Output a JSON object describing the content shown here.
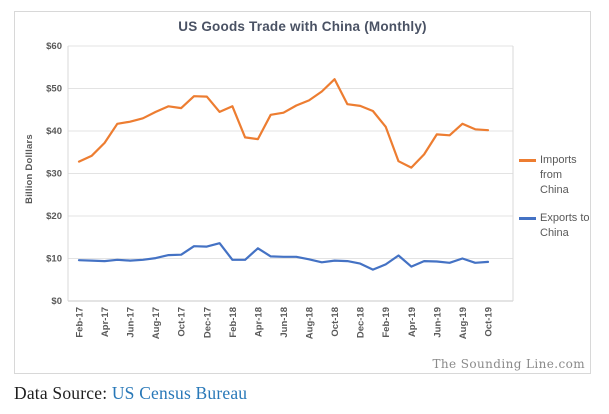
{
  "chart_data": {
    "type": "line",
    "title": "US Goods Trade with China (Monthly)",
    "ylabel": "Billion Dolllars",
    "xlabel": "",
    "ylim": [
      0,
      60
    ],
    "ytick_labels": [
      "$0",
      "$10",
      "$20",
      "$30",
      "$40",
      "$50",
      "$60"
    ],
    "grid": true,
    "legend_position": "right",
    "x": [
      "Feb-17",
      "Mar-17",
      "Apr-17",
      "May-17",
      "Jun-17",
      "Jul-17",
      "Aug-17",
      "Sep-17",
      "Oct-17",
      "Nov-17",
      "Dec-17",
      "Jan-18",
      "Feb-18",
      "Mar-18",
      "Apr-18",
      "May-18",
      "Jun-18",
      "Jul-18",
      "Aug-18",
      "Sep-18",
      "Oct-18",
      "Nov-18",
      "Dec-18",
      "Jan-19",
      "Feb-19",
      "Mar-19",
      "Apr-19",
      "May-19",
      "Jun-19",
      "Jul-19",
      "Aug-19",
      "Sep-19",
      "Oct-19"
    ],
    "xtick_labels": [
      "Feb-17",
      "Apr-17",
      "Jun-17",
      "Aug-17",
      "Oct-17",
      "Dec-17",
      "Feb-18",
      "Apr-18",
      "Jun-18",
      "Aug-18",
      "Oct-18",
      "Dec-18",
      "Feb-19",
      "Apr-19",
      "Jun-19",
      "Aug-19",
      "Oct-19"
    ],
    "series": [
      {
        "name": "Imports from China",
        "color": "#ED7D31",
        "values": [
          32.8,
          34.2,
          37.2,
          41.7,
          42.2,
          43.0,
          44.5,
          45.8,
          45.4,
          48.2,
          48.1,
          44.5,
          45.8,
          38.5,
          38.1,
          43.8,
          44.3,
          46.0,
          47.2,
          49.3,
          52.2,
          46.3,
          45.9,
          44.7,
          41.0,
          32.9,
          31.4,
          34.5,
          39.2,
          39.0,
          41.7,
          40.4,
          40.2
        ]
      },
      {
        "name": "Exports to China",
        "color": "#4472C4",
        "values": [
          9.6,
          9.5,
          9.4,
          9.7,
          9.5,
          9.7,
          10.1,
          10.8,
          10.9,
          12.9,
          12.8,
          13.6,
          9.7,
          9.7,
          12.4,
          10.5,
          10.4,
          10.4,
          9.8,
          9.1,
          9.5,
          9.4,
          8.8,
          7.4,
          8.6,
          10.7,
          8.1,
          9.4,
          9.3,
          9.0,
          10.0,
          9.0,
          9.2
        ]
      }
    ]
  },
  "legend": {
    "imports": {
      "line1": "Imports",
      "line2": "from China"
    },
    "exports": {
      "line1": "Exports to",
      "line2": "China"
    }
  },
  "watermark": "The Sounding Line.com",
  "caption": {
    "prefix": "Data Source: ",
    "link": "US Census Bureau"
  },
  "colors": {
    "imports_line": "#ED7D31",
    "exports_line": "#4472C4",
    "title_text": "#4a5264",
    "axis_text": "#595959",
    "gridline": "#e3e3e3",
    "plot_border": "#d9d9d9",
    "link_text": "#2878b8"
  }
}
